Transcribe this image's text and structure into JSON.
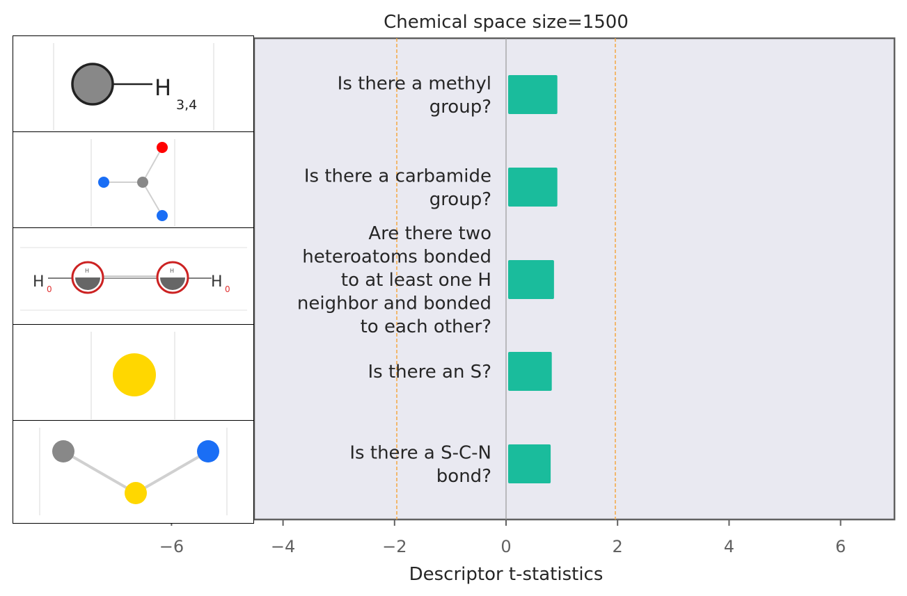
{
  "chart_data": {
    "type": "bar",
    "orientation": "horizontal",
    "title": "Chemical space size=1500",
    "xlabel": "Descriptor t-statistics",
    "xlim": [
      -8.5,
      7
    ],
    "xticks": [
      -6,
      -4,
      -2,
      0,
      2,
      4,
      6
    ],
    "xtick_labels": [
      "−6",
      "−4",
      "−2",
      "0",
      "2",
      "4",
      "6"
    ],
    "significance_lines": [
      -1.96,
      1.96
    ],
    "categories": [
      "Is there a methyl group?",
      "Is there a carbamide group?",
      "Are there two heteroatoms bonded to at least one H neighbor and bonded to each other?",
      "Is there an S?",
      "Is there a S-C-N bond?"
    ],
    "label_lines": [
      [
        "Is there a methyl",
        "group?"
      ],
      [
        "Is there a carbamide",
        "group?"
      ],
      [
        "Are there two",
        "heteroatoms bonded",
        "to at least one H",
        "neighbor and bonded",
        "to each other?"
      ],
      [
        "Is there an S?"
      ],
      [
        "Is there a S-C-N",
        "bond?"
      ]
    ],
    "values": [
      0.92,
      0.92,
      0.86,
      0.82,
      0.8
    ],
    "grid": false,
    "bar_color": "#1abc9c",
    "background_color": "#e9e9f1",
    "line_color": "#f5a742"
  },
  "molecules": [
    {
      "name": "methyl",
      "labels": [
        "H",
        "3,4"
      ]
    },
    {
      "name": "carbamide"
    },
    {
      "name": "hetero-pair",
      "labels": [
        "H",
        "0",
        "H",
        "0",
        "H",
        "H"
      ]
    },
    {
      "name": "sulfur"
    },
    {
      "name": "s-c-n"
    }
  ],
  "colors": {
    "carbon": "#888888",
    "oxygen": "#ff0000",
    "nitrogen": "#1a6ef5",
    "sulfur": "#ffd700",
    "ring": "#cc2222"
  }
}
